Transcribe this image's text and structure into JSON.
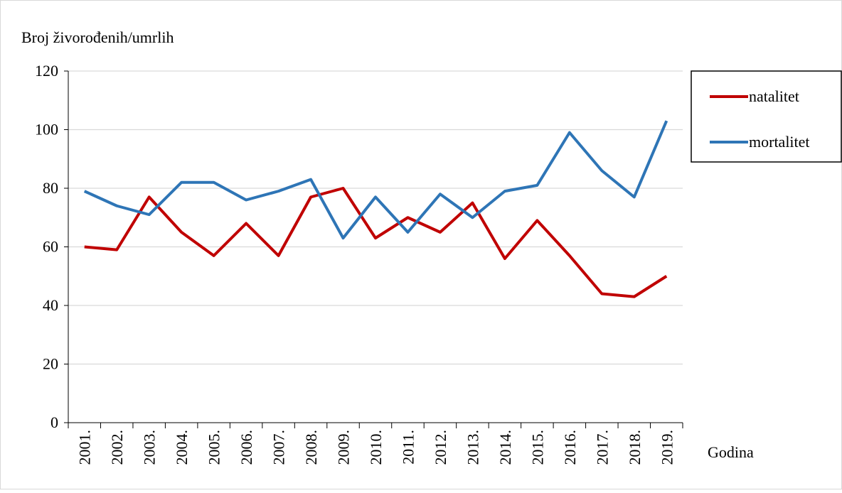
{
  "chart_data": {
    "type": "line",
    "y_label": "Broj živorođenih/umrlih",
    "x_label": "Godina",
    "categories": [
      "2001.",
      "2002.",
      "2003.",
      "2004.",
      "2005.",
      "2006.",
      "2007.",
      "2008.",
      "2009.",
      "2010.",
      "2011.",
      "2012.",
      "2013.",
      "2014.",
      "2015.",
      "2016.",
      "2017.",
      "2018.",
      "2019."
    ],
    "series": [
      {
        "name": "natalitet",
        "color": "#c00000",
        "values": [
          60,
          59,
          77,
          65,
          57,
          68,
          57,
          77,
          80,
          63,
          70,
          65,
          75,
          56,
          69,
          57,
          44,
          43,
          50
        ]
      },
      {
        "name": "mortalitet",
        "color": "#2e75b6",
        "values": [
          79,
          74,
          71,
          82,
          82,
          76,
          79,
          83,
          63,
          77,
          65,
          78,
          70,
          79,
          81,
          99,
          86,
          77,
          103
        ]
      }
    ],
    "ylim": [
      0,
      120
    ],
    "yticks": [
      0,
      20,
      40,
      60,
      80,
      100,
      120
    ],
    "grid": true,
    "legend": "right"
  }
}
